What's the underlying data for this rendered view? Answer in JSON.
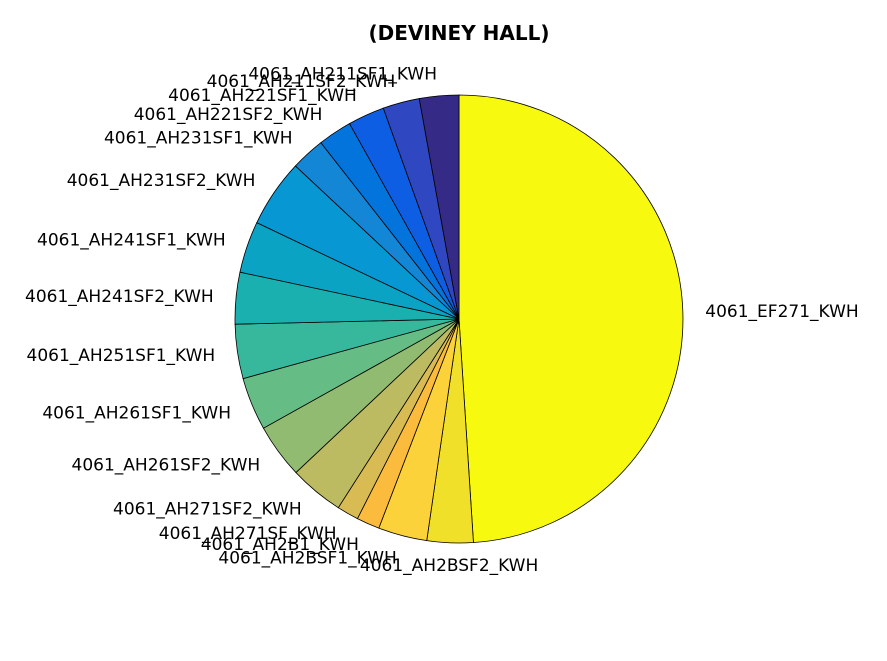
{
  "chart_data": {
    "type": "pie",
    "title": "(DEVINEY HALL)",
    "slices": [
      {
        "label": "4061_EF271_KWH",
        "value": 50.0,
        "color": "#f7fa0f"
      },
      {
        "label": "4061_AH2BSF2_KWH",
        "value": 3.4,
        "color": "#f0e02a"
      },
      {
        "label": "4061_AH2BSF1_KWH",
        "value": 3.6,
        "color": "#fcd23a"
      },
      {
        "label": "4061_AH2B1_KWH",
        "value": 1.7,
        "color": "#fbbb3d"
      },
      {
        "label": "4061_AH271SF_KWH",
        "value": 1.6,
        "color": "#d9bb54"
      },
      {
        "label": "4061_AH271SF2_KWH",
        "value": 4.0,
        "color": "#bcbb62"
      },
      {
        "label": "4061_AH261SF2_KWH",
        "value": 4.0,
        "color": "#90bb70"
      },
      {
        "label": "4061_AH261SF1_KWH",
        "value": 3.9,
        "color": "#65bd85"
      },
      {
        "label": "4061_AH251SF1_KWH",
        "value": 4.0,
        "color": "#37b89d"
      },
      {
        "label": "4061_AH241SF2_KWH",
        "value": 3.8,
        "color": "#1ab0af"
      },
      {
        "label": "4061_AH241SF1_KWH",
        "value": 3.8,
        "color": "#0aa3c4"
      },
      {
        "label": "4061_AH231SF2_KWH",
        "value": 5.0,
        "color": "#0798d4"
      },
      {
        "label": "4061_AH231SF1_KWH",
        "value": 2.5,
        "color": "#1486d6"
      },
      {
        "label": "4061_AH221SF2_KWH",
        "value": 2.5,
        "color": "#0474dd"
      },
      {
        "label": "4061_AH221SF1_KWH",
        "value": 2.7,
        "color": "#0e5ee3"
      },
      {
        "label": "4061_AH211SF2_KWH",
        "value": 2.7,
        "color": "#2f47c0"
      },
      {
        "label": "4061_AH211SF1_KWH",
        "value": 2.9,
        "color": "#352b87"
      }
    ],
    "start_angle_deg": 90,
    "direction": "clockwise",
    "legend": "none"
  }
}
